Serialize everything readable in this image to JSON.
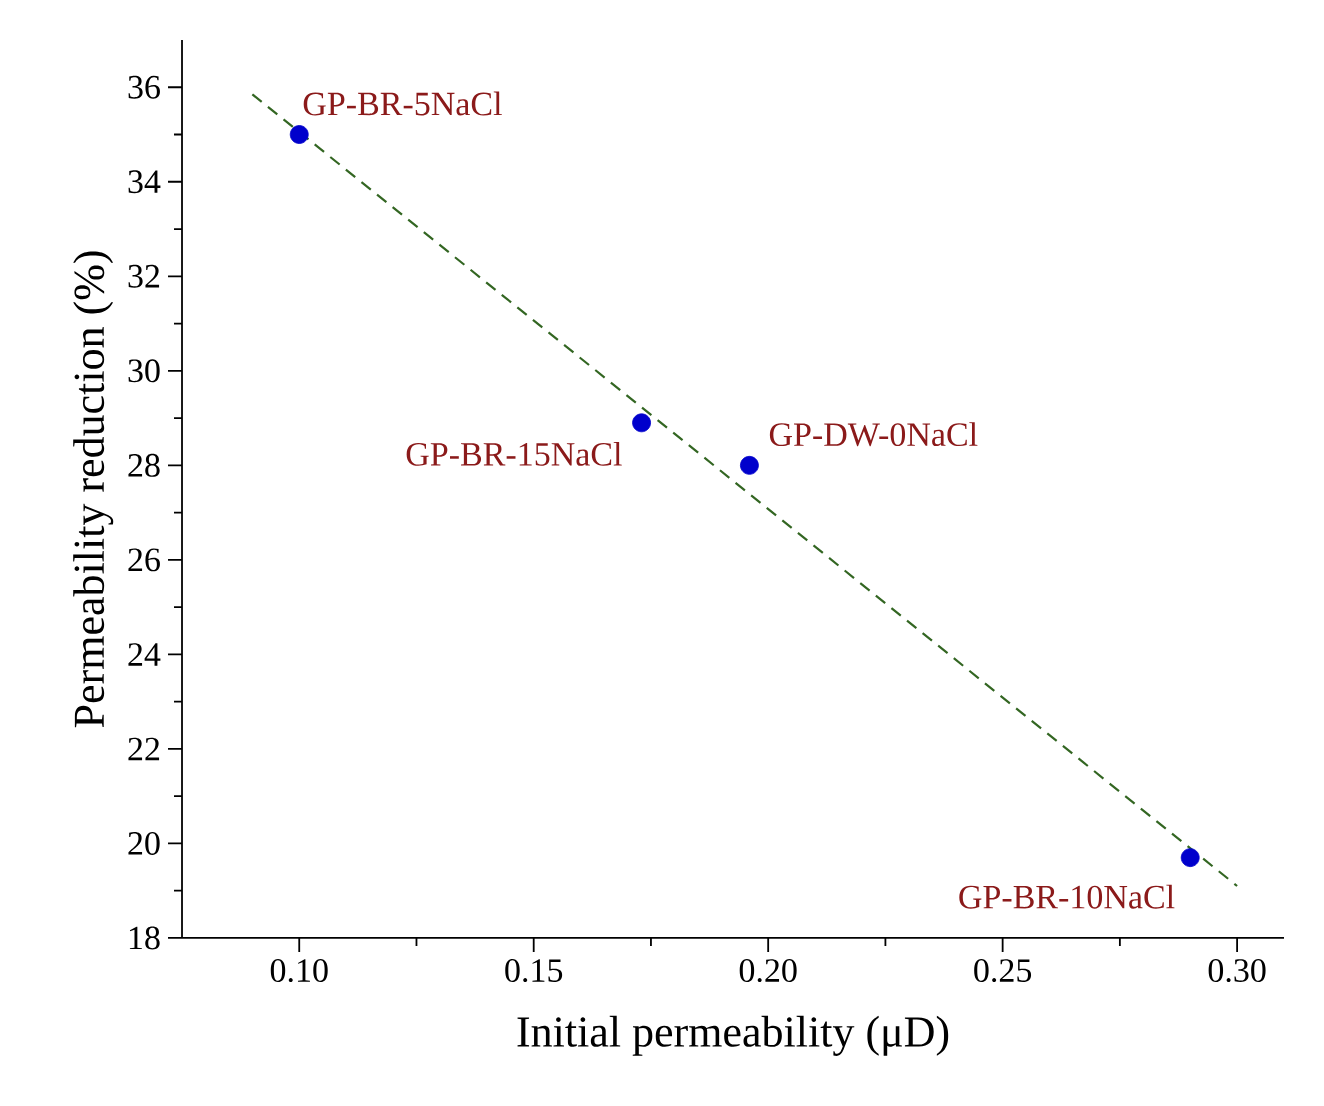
{
  "chart_data": {
    "type": "scatter",
    "xlabel": "Initial permeability (μD)",
    "ylabel": "Permeability reduction (%)",
    "xlim": [
      0.075,
      0.31
    ],
    "ylim": [
      18,
      37
    ],
    "xticks": [
      {
        "value": 0.1,
        "label": "0.10"
      },
      {
        "value": 0.15,
        "label": "0.15"
      },
      {
        "value": 0.2,
        "label": "0.20"
      },
      {
        "value": 0.25,
        "label": "0.25"
      },
      {
        "value": 0.3,
        "label": "0.30"
      }
    ],
    "yticks": [
      18,
      20,
      22,
      24,
      26,
      28,
      30,
      32,
      34,
      36
    ],
    "series": [
      {
        "color": "#0000cc",
        "marker": "circle",
        "x": [
          0.1,
          0.173,
          0.196,
          0.29
        ],
        "values": [
          35,
          28.9,
          28.0,
          19.7
        ]
      },
      {
        "type": "line",
        "color": "#336622",
        "marker": "none",
        "line_style": "dashed",
        "x": [
          0.09,
          0.3
        ],
        "values": [
          35.85,
          19.1
        ]
      }
    ],
    "annotations": [
      {
        "text": "GP-BR-5NaCl",
        "x": 0.1,
        "y": 35
      },
      {
        "text": "GP-BR-15NaCl",
        "x": 0.173,
        "y": 28.9
      },
      {
        "text": "GP-DW-0NaCl",
        "x": 0.196,
        "y": 28.0
      },
      {
        "text": "GP-BR-10NaCl",
        "x": 0.29,
        "y": 19.7
      }
    ]
  }
}
